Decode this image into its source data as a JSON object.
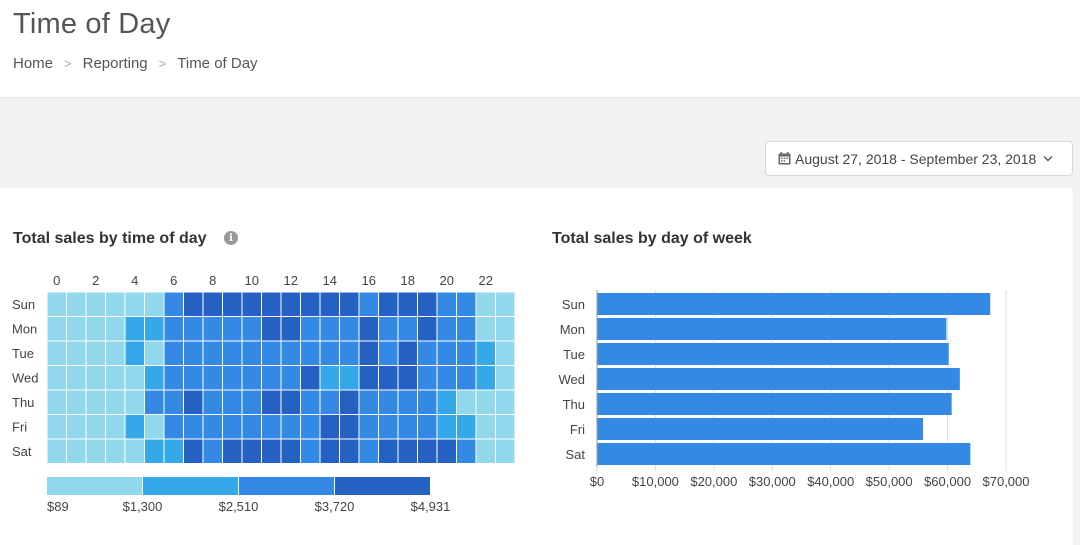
{
  "header": {
    "title": "Time of Day",
    "breadcrumb": [
      {
        "label": "Home"
      },
      {
        "label": "Reporting"
      },
      {
        "label": "Time of Day"
      }
    ],
    "separator": ">"
  },
  "date_range": {
    "label": "August 27, 2018 - September 23, 2018",
    "icon": "calendar-icon"
  },
  "panels": {
    "heatmap_title": "Total sales by time of day",
    "bar_title": "Total sales by day of week"
  },
  "chart_data": [
    {
      "type": "heatmap",
      "title": "Total sales by time of day",
      "rows": [
        "Sun",
        "Mon",
        "Tue",
        "Wed",
        "Thu",
        "Fri",
        "Sat"
      ],
      "columns": [
        0,
        1,
        2,
        3,
        4,
        5,
        6,
        7,
        8,
        9,
        10,
        11,
        12,
        13,
        14,
        15,
        16,
        17,
        18,
        19,
        20,
        21,
        22,
        23
      ],
      "x_tick_labels": [
        "0",
        "2",
        "4",
        "6",
        "8",
        "10",
        "12",
        "14",
        "16",
        "18",
        "20",
        "22"
      ],
      "legend": {
        "labels": [
          "$89",
          "$1,300",
          "$2,510",
          "$3,720",
          "$4,931"
        ],
        "colors": [
          "#92d8ed",
          "#35a8ea",
          "#3489e5",
          "#2461c2"
        ]
      },
      "levels": [
        [
          0,
          0,
          0,
          0,
          0,
          0,
          2,
          3,
          3,
          3,
          3,
          3,
          3,
          3,
          3,
          3,
          2,
          3,
          3,
          3,
          2,
          2,
          0,
          0
        ],
        [
          0,
          0,
          0,
          0,
          1,
          1,
          2,
          2,
          2,
          2,
          2,
          3,
          3,
          2,
          2,
          2,
          3,
          2,
          2,
          3,
          2,
          2,
          0,
          0
        ],
        [
          0,
          0,
          0,
          0,
          1,
          0,
          2,
          2,
          2,
          2,
          2,
          2,
          2,
          2,
          2,
          2,
          3,
          2,
          3,
          2,
          2,
          2,
          1,
          0
        ],
        [
          0,
          0,
          0,
          0,
          0,
          1,
          2,
          2,
          2,
          2,
          2,
          2,
          2,
          3,
          1,
          1,
          3,
          3,
          3,
          2,
          2,
          2,
          1,
          0
        ],
        [
          0,
          0,
          0,
          0,
          0,
          2,
          2,
          3,
          2,
          2,
          2,
          3,
          3,
          2,
          2,
          3,
          2,
          2,
          2,
          2,
          1,
          0,
          0,
          0
        ],
        [
          0,
          0,
          0,
          0,
          1,
          0,
          2,
          2,
          2,
          2,
          2,
          2,
          2,
          2,
          3,
          3,
          2,
          2,
          2,
          2,
          1,
          1,
          0,
          0
        ],
        [
          0,
          0,
          0,
          0,
          0,
          1,
          1,
          3,
          2,
          3,
          3,
          3,
          3,
          2,
          3,
          3,
          2,
          3,
          3,
          3,
          3,
          2,
          0,
          0
        ]
      ],
      "colors": [
        "#92d8ed",
        "#35a8ea",
        "#3489e5",
        "#2461c2"
      ]
    },
    {
      "type": "bar",
      "orientation": "horizontal",
      "title": "Total sales by day of week",
      "categories": [
        "Sun",
        "Mon",
        "Tue",
        "Wed",
        "Thu",
        "Fri",
        "Sat"
      ],
      "values": [
        67300,
        59800,
        60200,
        62100,
        60700,
        55800,
        63900
      ],
      "xlim": [
        0,
        70000
      ],
      "x_tick_labels": [
        "$0",
        "$10,000",
        "$20,000",
        "$30,000",
        "$40,000",
        "$50,000",
        "$60,000",
        "$70,000"
      ],
      "grid": "vertical",
      "color": "#3489e5"
    }
  ]
}
